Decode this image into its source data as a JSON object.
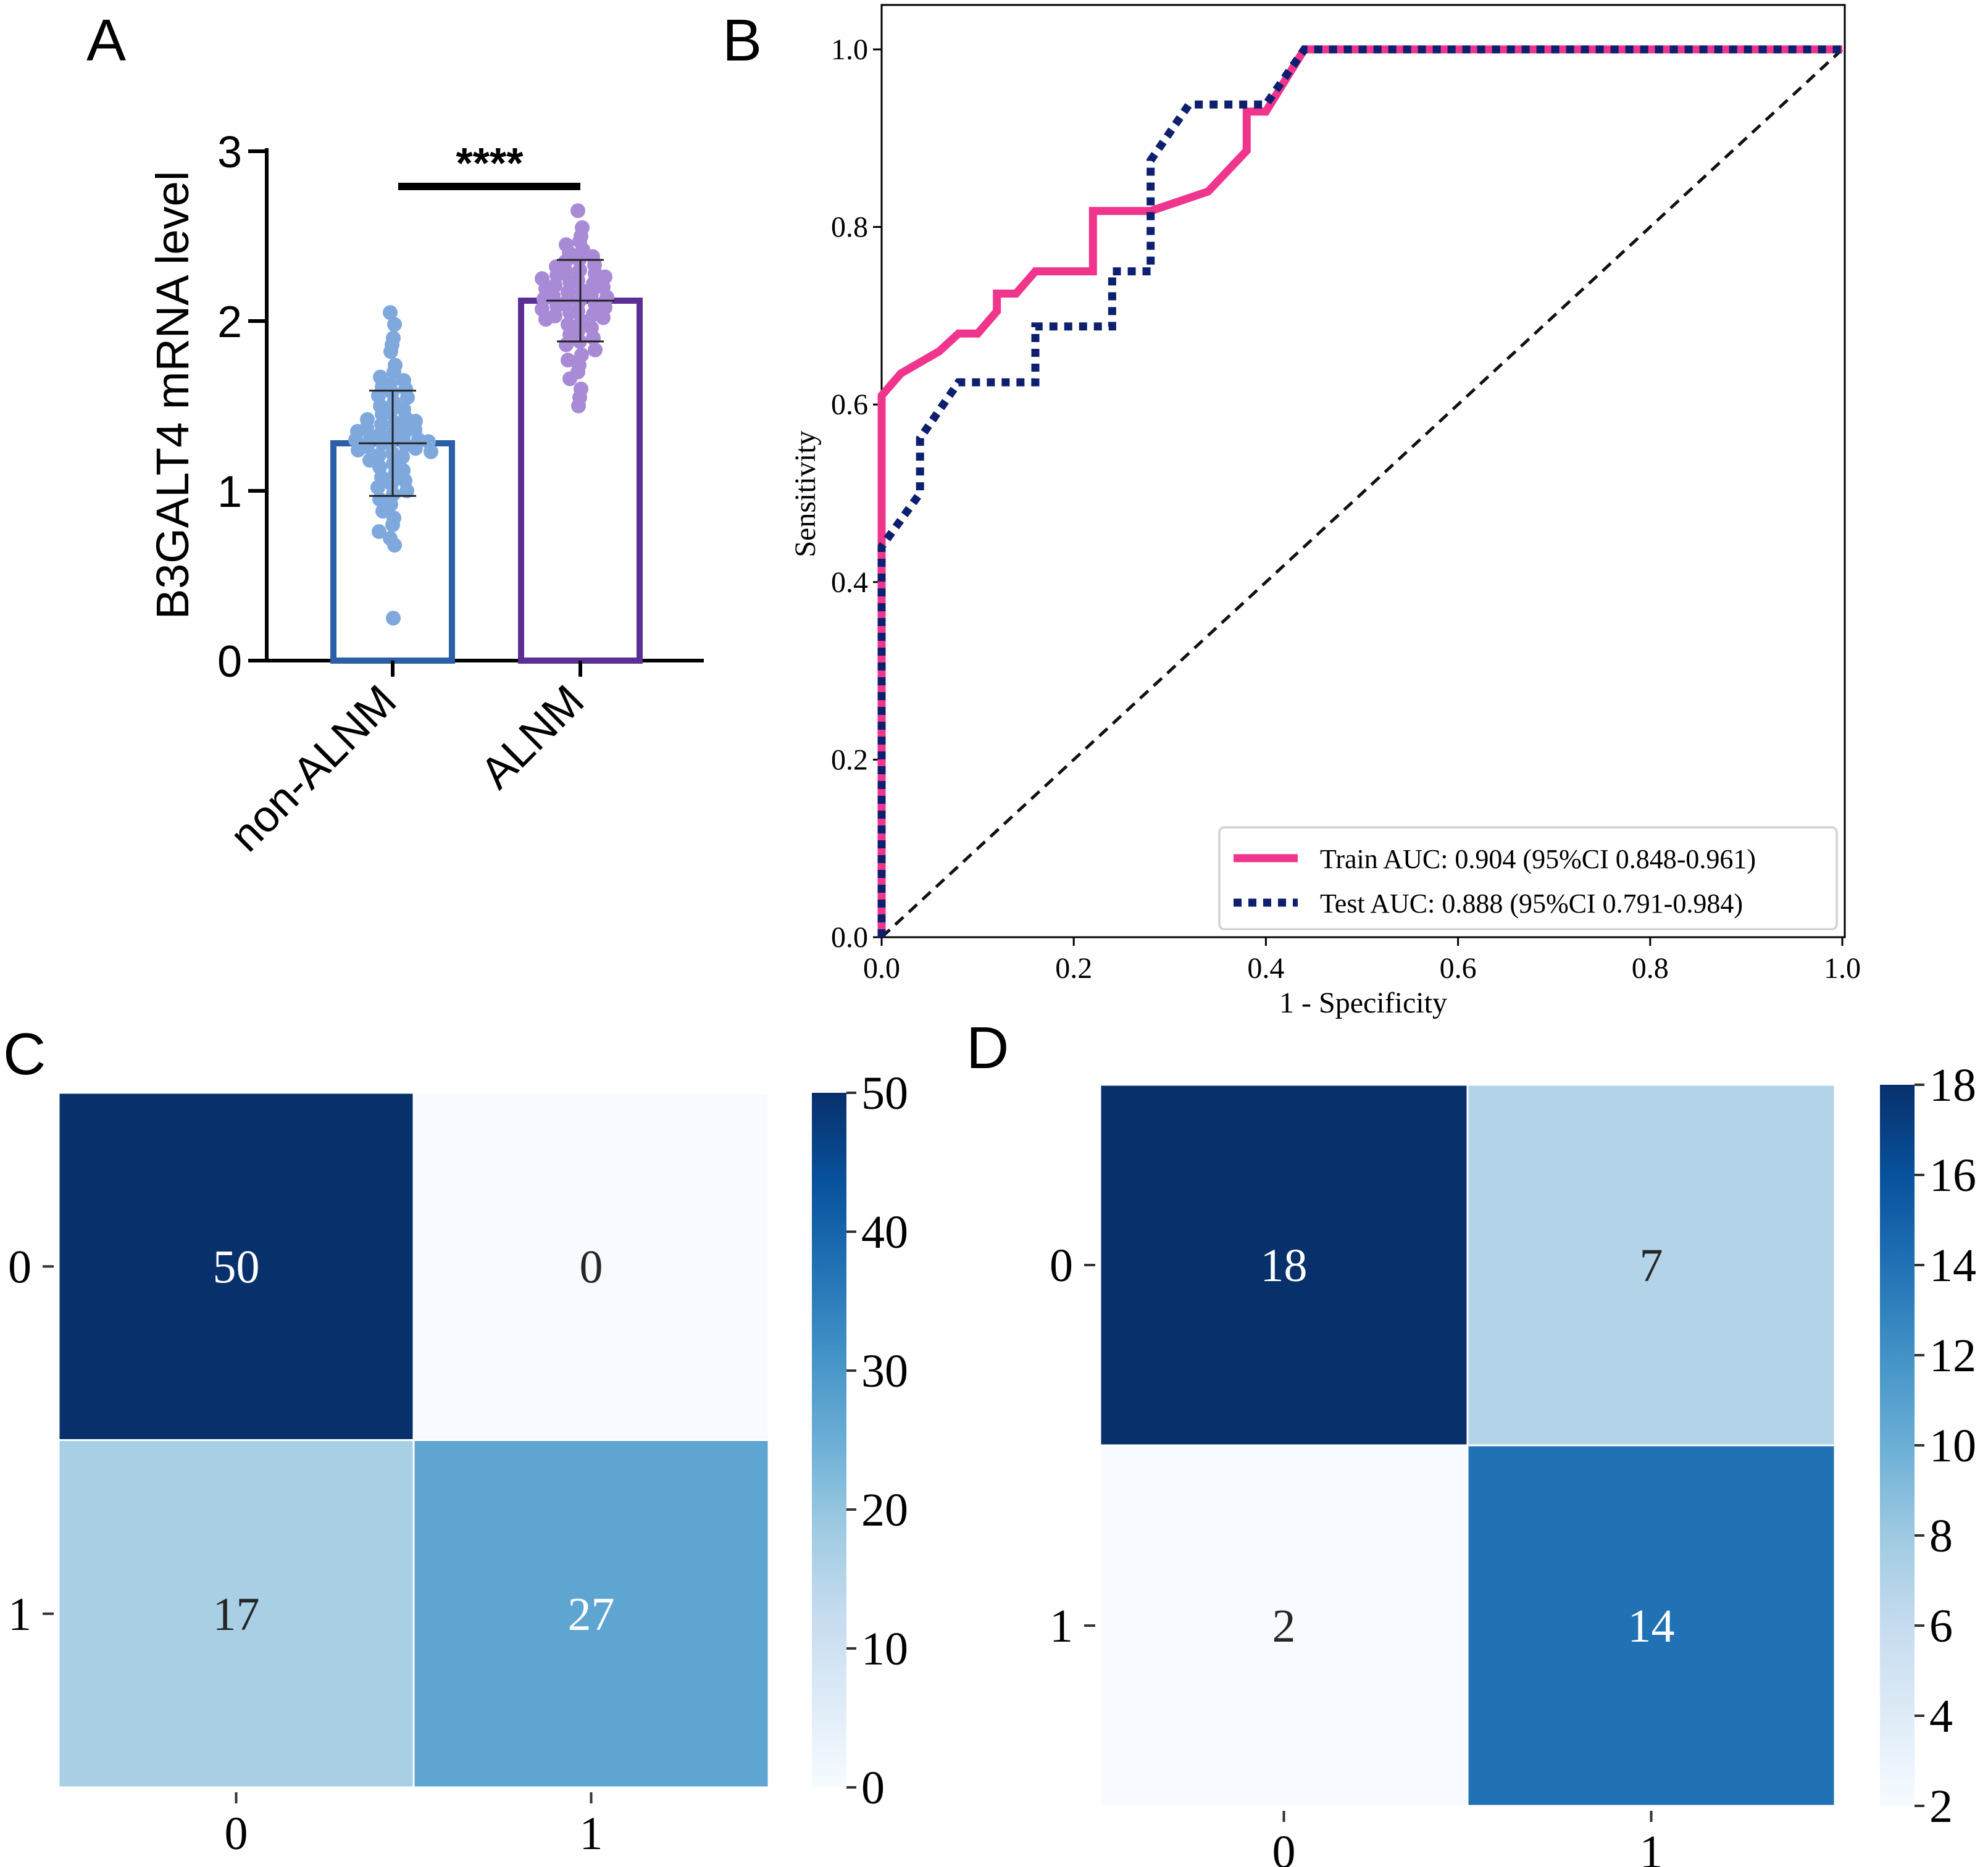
{
  "panels": {
    "a": "A",
    "b": "B",
    "c": "C",
    "d": "D"
  },
  "colors": {
    "non_alnm": "#2B5FA6",
    "non_alnm_points": "#7FA8DD",
    "alnm": "#5B2F93",
    "alnm_points": "#A98AD6",
    "train": "#F0358C",
    "test": "#0D1F6E",
    "diagonal": "#111111",
    "heat_low": "#F7FBFF",
    "heat_high": "#08306B"
  },
  "chart_data": [
    {
      "id": "A",
      "type": "bar",
      "ylabel": "B3GALT4 mRNA level",
      "categories": [
        "non-ALNM",
        "ALNM"
      ],
      "values": [
        1.28,
        2.12
      ],
      "sd": [
        0.31,
        0.24
      ],
      "ylim": [
        0,
        3
      ],
      "yticks": [
        0,
        1,
        2,
        3
      ],
      "significance": "****",
      "points": [
        [
          2.05,
          1.98,
          1.9,
          1.86,
          1.82,
          1.74,
          1.7,
          1.67,
          1.65,
          1.63,
          1.61,
          1.6,
          1.58,
          1.56,
          1.55,
          1.52,
          1.5,
          1.48,
          1.46,
          1.45,
          1.43,
          1.42,
          1.41,
          1.4,
          1.39,
          1.38,
          1.37,
          1.36,
          1.35,
          1.34,
          1.33,
          1.32,
          1.31,
          1.3,
          1.3,
          1.29,
          1.28,
          1.28,
          1.27,
          1.26,
          1.25,
          1.24,
          1.23,
          1.22,
          1.21,
          1.2,
          1.18,
          1.16,
          1.14,
          1.12,
          1.1,
          1.08,
          1.06,
          1.04,
          1.02,
          1.0,
          0.98,
          0.95,
          0.92,
          0.88,
          0.84,
          0.8,
          0.76,
          0.72,
          0.68,
          0.25
        ],
        [
          2.65,
          2.55,
          2.5,
          2.47,
          2.45,
          2.42,
          2.4,
          2.38,
          2.36,
          2.35,
          2.33,
          2.32,
          2.3,
          2.29,
          2.28,
          2.27,
          2.26,
          2.25,
          2.24,
          2.23,
          2.22,
          2.21,
          2.2,
          2.19,
          2.18,
          2.17,
          2.16,
          2.15,
          2.14,
          2.13,
          2.12,
          2.11,
          2.1,
          2.09,
          2.08,
          2.07,
          2.06,
          2.05,
          2.04,
          2.03,
          2.02,
          2.01,
          2.0,
          1.98,
          1.96,
          1.94,
          1.92,
          1.9,
          1.88,
          1.86,
          1.83,
          1.8,
          1.77,
          1.74,
          1.7,
          1.66,
          1.6,
          1.55,
          1.5
        ]
      ]
    },
    {
      "id": "B",
      "type": "line",
      "xlabel": "1 - Specificity",
      "ylabel": "Sensitivity",
      "xlim": [
        0,
        1
      ],
      "ylim": [
        0,
        1
      ],
      "xticks": [
        0.0,
        0.2,
        0.4,
        0.6,
        0.8,
        1.0
      ],
      "yticks": [
        0.0,
        0.2,
        0.4,
        0.6,
        0.8,
        1.0
      ],
      "tick_labels": [
        "0.0",
        "0.2",
        "0.4",
        "0.6",
        "0.8",
        "1.0"
      ],
      "legend_position": "bottom-right",
      "series": [
        {
          "name": "Train AUC: 0.904 (95%CI 0.848-0.961)",
          "style": "solid",
          "points": [
            [
              0,
              0
            ],
            [
              0,
              0.61
            ],
            [
              0.02,
              0.635
            ],
            [
              0.06,
              0.66
            ],
            [
              0.08,
              0.68
            ],
            [
              0.1,
              0.68
            ],
            [
              0.12,
              0.705
            ],
            [
              0.12,
              0.725
            ],
            [
              0.14,
              0.725
            ],
            [
              0.16,
              0.75
            ],
            [
              0.22,
              0.75
            ],
            [
              0.22,
              0.818
            ],
            [
              0.28,
              0.818
            ],
            [
              0.34,
              0.84
            ],
            [
              0.38,
              0.886
            ],
            [
              0.38,
              0.93
            ],
            [
              0.4,
              0.93
            ],
            [
              0.44,
              1.0
            ],
            [
              1.0,
              1.0
            ]
          ]
        },
        {
          "name": "Test AUC: 0.888 (95%CI 0.791-0.984)",
          "style": "dotted",
          "points": [
            [
              0,
              0
            ],
            [
              0,
              0.44
            ],
            [
              0.04,
              0.5
            ],
            [
              0.04,
              0.562
            ],
            [
              0.08,
              0.625
            ],
            [
              0.16,
              0.625
            ],
            [
              0.16,
              0.688
            ],
            [
              0.24,
              0.688
            ],
            [
              0.24,
              0.75
            ],
            [
              0.28,
              0.75
            ],
            [
              0.28,
              0.875
            ],
            [
              0.32,
              0.938
            ],
            [
              0.4,
              0.938
            ],
            [
              0.44,
              1.0
            ],
            [
              1.0,
              1.0
            ]
          ]
        },
        {
          "name": "chance",
          "style": "dashed",
          "points": [
            [
              0,
              0
            ],
            [
              1,
              1
            ]
          ]
        }
      ]
    },
    {
      "id": "C",
      "type": "heatmap",
      "rows": [
        "0",
        "1"
      ],
      "cols": [
        "0",
        "1"
      ],
      "values": [
        [
          50,
          0
        ],
        [
          17,
          27
        ]
      ],
      "colorbar_range": [
        0,
        50
      ],
      "colorbar_ticks": [
        0,
        10,
        20,
        30,
        40,
        50
      ]
    },
    {
      "id": "D",
      "type": "heatmap",
      "rows": [
        "0",
        "1"
      ],
      "cols": [
        "0",
        "1"
      ],
      "values": [
        [
          18,
          7
        ],
        [
          2,
          14
        ]
      ],
      "colorbar_range": [
        2,
        18
      ],
      "colorbar_ticks": [
        2,
        4,
        6,
        8,
        10,
        12,
        14,
        16,
        18
      ]
    }
  ]
}
